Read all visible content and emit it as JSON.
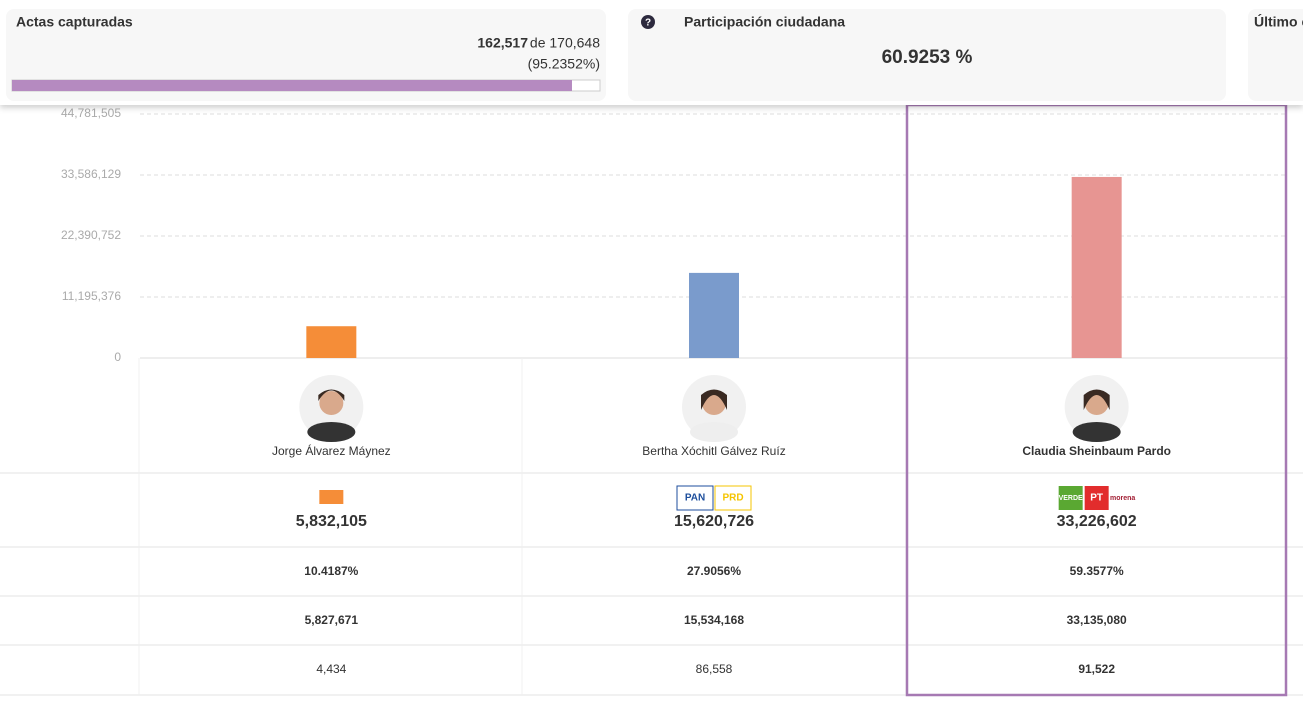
{
  "header": {
    "actas": {
      "title": "Actas capturadas",
      "count": "162,517",
      "total": "de 170,648",
      "percent": 95.2352,
      "percent_label": "(95.2352%)"
    },
    "participation": {
      "icon": "?",
      "title": "Participación ciudadana",
      "value": "60.9253 %"
    },
    "last_cut": {
      "title": "Último c"
    }
  },
  "chart_data": {
    "type": "bar",
    "categories": [
      "Jorge Álvarez Máynez",
      "Bertha Xóchitl Gálvez Ruíz",
      "Claudia Sheinbaum Pardo"
    ],
    "values": [
      5832105,
      15620726,
      33226602
    ],
    "value_labels": [
      "5,832,105",
      "15,620,726",
      "33,226,602"
    ],
    "colors": [
      "#f58d38",
      "#7a9bcc",
      "#e79592"
    ],
    "ylim": [
      0,
      44781505
    ],
    "yticks": [
      0,
      {
        "value": 11195376,
        "label": "11,195,376"
      },
      {
        "value": 22390752,
        "label": "22,390,752"
      },
      {
        "value": 33586129,
        "label": "33,586,129"
      },
      {
        "value": 44781505,
        "label": "44,781,505"
      }
    ],
    "grid": true
  },
  "party_labels": [
    [],
    [
      "PAN",
      "PRD"
    ],
    [
      "VERDE",
      "PT",
      "morena"
    ]
  ],
  "table": {
    "rows": [
      [
        "10.4187%",
        "27.9056%",
        "59.3577%"
      ],
      [
        "5,827,671",
        "15,534,168",
        "33,135,080"
      ],
      [
        "4,434",
        "86,558",
        "91,522"
      ]
    ]
  }
}
